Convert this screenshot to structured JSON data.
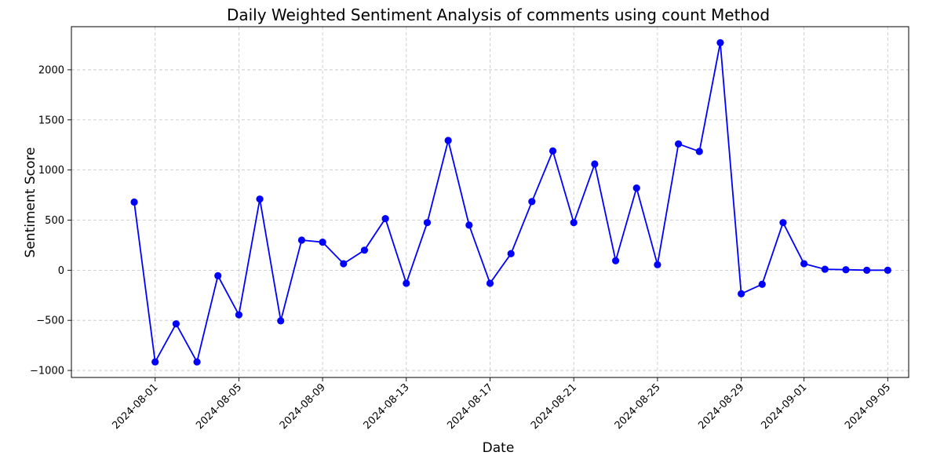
{
  "chart_data": {
    "type": "line",
    "title": "Daily Weighted Sentiment Analysis of comments using count Method",
    "xlabel": "Date",
    "ylabel": "Sentiment Score",
    "xlim": [
      "2024-07-28",
      "2024-09-06"
    ],
    "ylim": [
      -1070,
      2430
    ],
    "x_ticks": [
      "2024-08-01",
      "2024-08-05",
      "2024-08-09",
      "2024-08-13",
      "2024-08-17",
      "2024-08-21",
      "2024-08-25",
      "2024-08-29",
      "2024-09-01",
      "2024-09-05"
    ],
    "y_ticks": [
      -1000,
      -500,
      0,
      500,
      1000,
      1500,
      2000
    ],
    "grid": true,
    "line_color": "#0000ff",
    "marker_color": "#0000ff",
    "x": [
      "2024-07-31",
      "2024-08-01",
      "2024-08-02",
      "2024-08-03",
      "2024-08-04",
      "2024-08-05",
      "2024-08-06",
      "2024-08-07",
      "2024-08-08",
      "2024-08-09",
      "2024-08-10",
      "2024-08-11",
      "2024-08-12",
      "2024-08-13",
      "2024-08-14",
      "2024-08-15",
      "2024-08-16",
      "2024-08-17",
      "2024-08-18",
      "2024-08-19",
      "2024-08-20",
      "2024-08-21",
      "2024-08-22",
      "2024-08-23",
      "2024-08-24",
      "2024-08-25",
      "2024-08-26",
      "2024-08-27",
      "2024-08-28",
      "2024-08-29",
      "2024-08-30",
      "2024-08-31",
      "2024-09-01",
      "2024-09-02",
      "2024-09-03",
      "2024-09-04",
      "2024-09-05"
    ],
    "values": [
      680,
      -915,
      -535,
      -915,
      -55,
      -445,
      710,
      -505,
      300,
      280,
      65,
      200,
      515,
      -130,
      475,
      1295,
      450,
      -130,
      165,
      685,
      1190,
      475,
      1060,
      95,
      820,
      55,
      1260,
      1185,
      2270,
      -235,
      -140,
      475,
      65,
      10,
      5,
      0,
      0
    ]
  }
}
